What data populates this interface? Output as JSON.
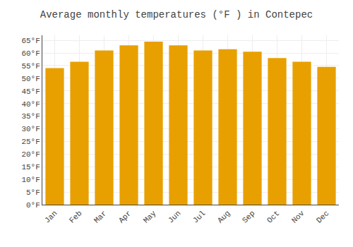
{
  "chart_data": {
    "type": "bar",
    "title": "Average monthly temperatures (°F ) in Contepec",
    "categories": [
      "Jan",
      "Feb",
      "Mar",
      "Apr",
      "May",
      "Jun",
      "Jul",
      "Aug",
      "Sep",
      "Oct",
      "Nov",
      "Dec"
    ],
    "values": [
      54,
      56.5,
      61,
      63,
      64.5,
      63,
      61,
      61.5,
      60.5,
      58,
      56.5,
      54.5
    ],
    "color": "#E8A000",
    "ylim": [
      0,
      67
    ],
    "yticks": [
      {
        "value": 0,
        "label": "0°F"
      },
      {
        "value": 5,
        "label": "5°F"
      },
      {
        "value": 10,
        "label": "10°F"
      },
      {
        "value": 15,
        "label": "15°F"
      },
      {
        "value": 20,
        "label": "20°F"
      },
      {
        "value": 25,
        "label": "25°F"
      },
      {
        "value": 30,
        "label": "30°F"
      },
      {
        "value": 35,
        "label": "35°F"
      },
      {
        "value": 40,
        "label": "40°F"
      },
      {
        "value": 45,
        "label": "45°F"
      },
      {
        "value": 50,
        "label": "50°F"
      },
      {
        "value": 55,
        "label": "55°F"
      },
      {
        "value": 60,
        "label": "60°F"
      },
      {
        "value": 65,
        "label": "65°F"
      }
    ],
    "grid": true
  }
}
